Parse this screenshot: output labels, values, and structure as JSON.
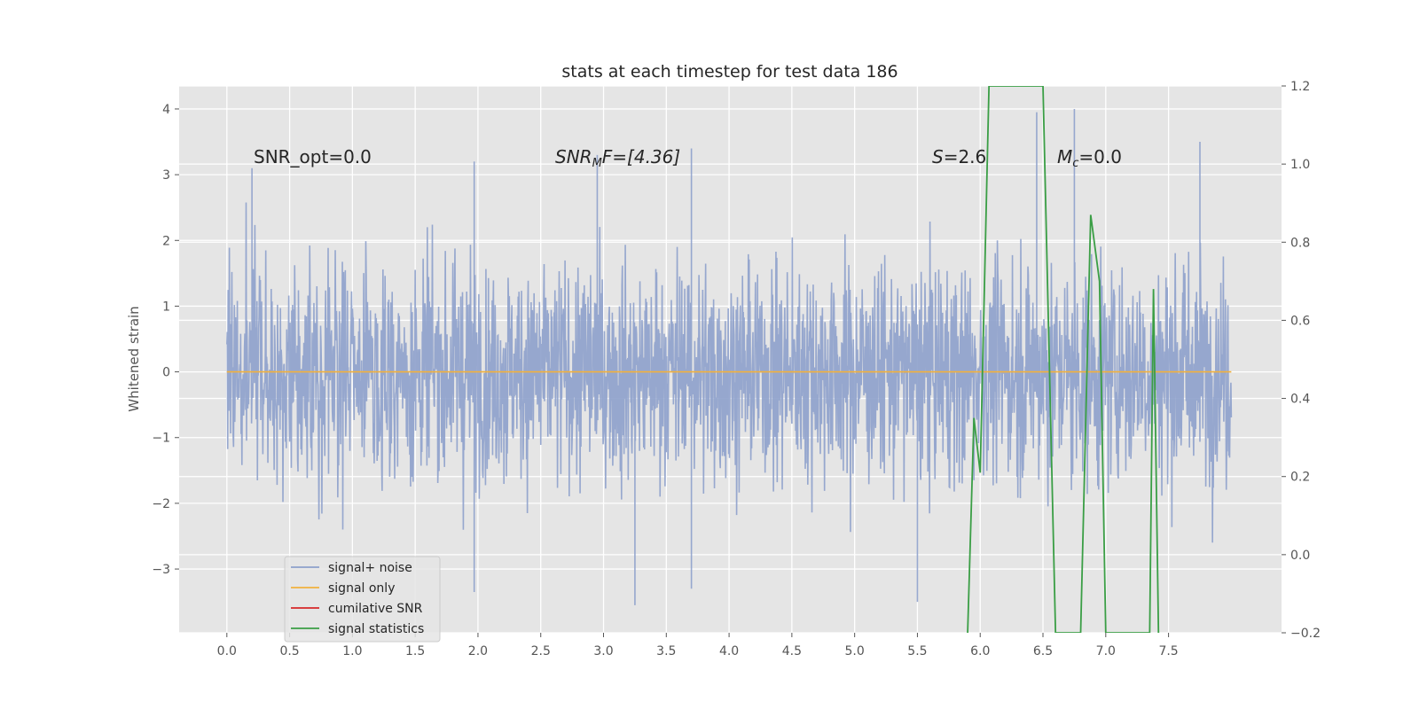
{
  "chart_data": {
    "type": "line",
    "title": "stats at each timestep for test data 186",
    "xlabel": "",
    "ylabel": "Whitened strain",
    "xlim": [
      -0.38,
      8.4
    ],
    "ylim": [
      -3.97,
      4.35
    ],
    "y2lim": [
      -0.2,
      1.2
    ],
    "xticks": [
      "0.0",
      "0.5",
      "1.0",
      "1.5",
      "2.0",
      "2.5",
      "3.0",
      "3.5",
      "4.0",
      "4.5",
      "5.0",
      "5.5",
      "6.0",
      "6.5",
      "7.0",
      "7.5"
    ],
    "xtick_values": [
      0.0,
      0.5,
      1.0,
      1.5,
      2.0,
      2.5,
      3.0,
      3.5,
      4.0,
      4.5,
      5.0,
      5.5,
      6.0,
      6.5,
      7.0,
      7.5
    ],
    "yticks": [
      "4",
      "3",
      "2",
      "1",
      "0",
      "−1",
      "−2",
      "−3"
    ],
    "ytick_values": [
      4,
      3,
      2,
      1,
      0,
      -1,
      -2,
      -3
    ],
    "y2ticks": [
      "1.2",
      "1.0",
      "0.8",
      "0.6",
      "0.4",
      "0.2",
      "0.0",
      "−0.2"
    ],
    "y2tick_values": [
      1.2,
      1.0,
      0.8,
      0.6,
      0.4,
      0.2,
      0.0,
      -0.2
    ],
    "grid": true,
    "noise": {
      "x_start": 0.0,
      "x_end": 8.0,
      "samples": 2400,
      "peak_points": [
        [
          0.2,
          3.1
        ],
        [
          1.97,
          3.2
        ],
        [
          2.95,
          3.3
        ],
        [
          3.7,
          3.4
        ],
        [
          6.45,
          3.95
        ],
        [
          6.75,
          4.0
        ],
        [
          7.75,
          3.5
        ],
        [
          1.97,
          -3.35
        ],
        [
          3.25,
          -3.55
        ],
        [
          5.5,
          -3.5
        ],
        [
          3.7,
          -3.3
        ]
      ]
    },
    "series": [
      {
        "name": "signal+ noise",
        "color": "#8da0cb",
        "constant": null
      },
      {
        "name": "signal only",
        "color": "#f2b13c",
        "constant": 0.0
      },
      {
        "name": "cumilative SNR",
        "color": "#d62728",
        "constant": null
      },
      {
        "name": "signal statistics",
        "color": "#3a9e45",
        "axis": "right",
        "points": [
          [
            5.9,
            -0.2
          ],
          [
            5.95,
            0.35
          ],
          [
            6.0,
            0.21
          ],
          [
            6.07,
            1.2
          ],
          [
            6.5,
            1.2
          ],
          [
            6.6,
            -0.2
          ],
          [
            6.8,
            -0.2
          ],
          [
            6.88,
            0.87
          ],
          [
            6.95,
            0.7
          ],
          [
            7.0,
            -0.2
          ],
          [
            7.35,
            -0.2
          ],
          [
            7.38,
            0.68
          ],
          [
            7.42,
            -0.2
          ]
        ]
      }
    ],
    "annotations": [
      {
        "id": "snr-opt",
        "text": "SNR_opt=0.0"
      },
      {
        "id": "snr-mf",
        "base": "SNR",
        "sub": "M",
        "rest": "F=[4.36]"
      },
      {
        "id": "s-stat",
        "base": "S",
        "rest": "=2.6"
      },
      {
        "id": "mc",
        "base": "M",
        "sub": "c",
        "rest": "=0.0"
      }
    ],
    "legend": {
      "placement": "lower-left",
      "entries": [
        "signal+ noise",
        "signal only",
        "cumilative SNR",
        "signal statistics"
      ]
    }
  }
}
